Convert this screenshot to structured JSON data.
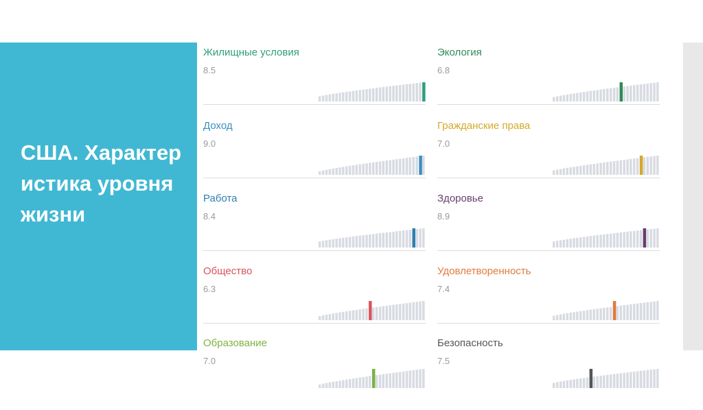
{
  "slide": {
    "title": "США. Характеристика уровня жизни"
  },
  "metrics": [
    {
      "label": "Жилищные условия",
      "value": "8.5",
      "color": "#2f9e7d",
      "bar_count": 32,
      "highlight_index": 31,
      "start_fraction": 0.15
    },
    {
      "label": "Доход",
      "value": "9.0",
      "color": "#3a8fc0",
      "bar_count": 32,
      "highlight_index": 30,
      "start_fraction": 0.05
    },
    {
      "label": "Работа",
      "value": "8.4",
      "color": "#2f7fb0",
      "bar_count": 32,
      "highlight_index": 28,
      "start_fraction": 0.2
    },
    {
      "label": "Общество",
      "value": "6.3",
      "color": "#d9535f",
      "bar_count": 32,
      "highlight_index": 15,
      "start_fraction": 0.08
    },
    {
      "label": "Образование",
      "value": "7.0",
      "color": "#7cb342",
      "bar_count": 32,
      "highlight_index": 16,
      "start_fraction": 0.05
    },
    {
      "label": "Экология",
      "value": "6.8",
      "color": "#2e8b57",
      "bar_count": 32,
      "highlight_index": 20,
      "start_fraction": 0.1
    },
    {
      "label": "Гражданские права",
      "value": "7.0",
      "color": "#d4a928",
      "bar_count": 32,
      "highlight_index": 26,
      "start_fraction": 0.1
    },
    {
      "label": "Здоровье",
      "value": "8.9",
      "color": "#6a3d6e",
      "bar_count": 32,
      "highlight_index": 27,
      "start_fraction": 0.2
    },
    {
      "label": "Удовлетворенность",
      "value": "7.4",
      "color": "#e07a3e",
      "bar_count": 32,
      "highlight_index": 18,
      "start_fraction": 0.1
    },
    {
      "label": "Безопасность",
      "value": "7.5",
      "color": "#555555",
      "bar_count": 32,
      "highlight_index": 11,
      "start_fraction": 0.15
    }
  ]
}
